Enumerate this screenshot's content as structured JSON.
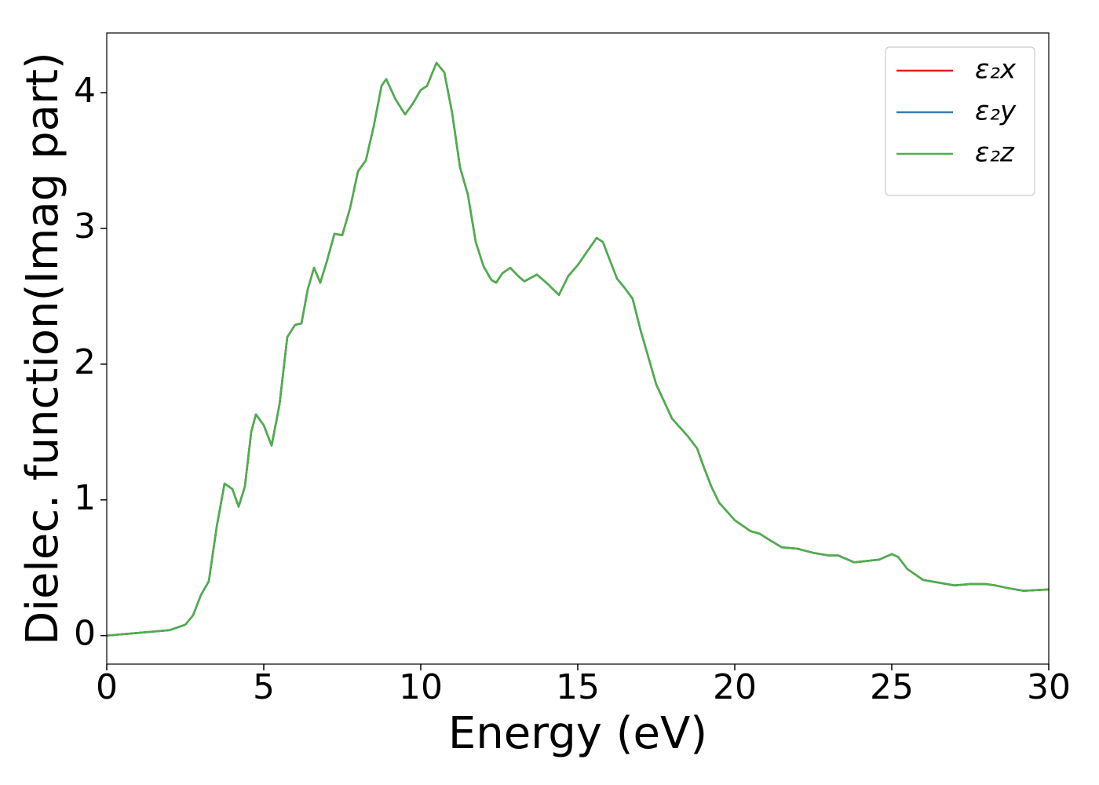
{
  "chart_data": {
    "type": "line",
    "xlabel": "Energy (eV)",
    "ylabel": "Dielec. function(Imag part)",
    "x": [
      0,
      1,
      2,
      2.5,
      2.75,
      3.0,
      3.25,
      3.5,
      3.75,
      4.0,
      4.2,
      4.4,
      4.6,
      4.75,
      5.0,
      5.25,
      5.5,
      5.75,
      6.0,
      6.2,
      6.4,
      6.6,
      6.8,
      7.0,
      7.25,
      7.5,
      7.75,
      8.0,
      8.25,
      8.5,
      8.75,
      8.9,
      9.2,
      9.5,
      9.75,
      10.0,
      10.2,
      10.5,
      10.75,
      11.0,
      11.25,
      11.5,
      11.75,
      12.0,
      12.25,
      12.4,
      12.6,
      12.85,
      13.1,
      13.3,
      13.7,
      14.0,
      14.4,
      14.7,
      15.0,
      15.3,
      15.6,
      15.8,
      16.0,
      16.25,
      16.5,
      16.75,
      17.0,
      17.25,
      17.5,
      18.0,
      18.5,
      18.8,
      19.0,
      19.25,
      19.5,
      20.0,
      20.5,
      20.8,
      21.0,
      21.5,
      22.0,
      22.5,
      23.0,
      23.3,
      23.8,
      24.2,
      24.6,
      25.0,
      25.2,
      25.5,
      26.0,
      26.5,
      27.0,
      27.5,
      28.0,
      28.3,
      28.7,
      29.2,
      30
    ],
    "series": [
      {
        "name": "ε₂x",
        "color": "#e41a1c",
        "values": [
          0,
          0.02,
          0.04,
          0.08,
          0.15,
          0.3,
          0.4,
          0.8,
          1.12,
          1.08,
          0.95,
          1.1,
          1.5,
          1.63,
          1.55,
          1.4,
          1.7,
          2.2,
          2.29,
          2.3,
          2.55,
          2.71,
          2.6,
          2.75,
          2.96,
          2.95,
          3.15,
          3.42,
          3.5,
          3.75,
          4.05,
          4.1,
          3.95,
          3.84,
          3.92,
          4.02,
          4.05,
          4.22,
          4.15,
          3.85,
          3.45,
          3.25,
          2.9,
          2.72,
          2.62,
          2.6,
          2.67,
          2.71,
          2.65,
          2.61,
          2.66,
          2.6,
          2.51,
          2.65,
          2.73,
          2.83,
          2.93,
          2.9,
          2.78,
          2.63,
          2.56,
          2.48,
          2.25,
          2.05,
          1.85,
          1.6,
          1.47,
          1.38,
          1.25,
          1.1,
          0.98,
          0.85,
          0.77,
          0.75,
          0.72,
          0.65,
          0.64,
          0.61,
          0.59,
          0.59,
          0.54,
          0.55,
          0.56,
          0.6,
          0.58,
          0.49,
          0.41,
          0.39,
          0.37,
          0.38,
          0.38,
          0.37,
          0.35,
          0.33,
          0.34
        ]
      },
      {
        "name": "ε₂y",
        "color": "#377eb8",
        "values": [
          0,
          0.02,
          0.04,
          0.08,
          0.15,
          0.3,
          0.4,
          0.8,
          1.12,
          1.08,
          0.95,
          1.1,
          1.5,
          1.63,
          1.55,
          1.4,
          1.7,
          2.2,
          2.29,
          2.3,
          2.55,
          2.71,
          2.6,
          2.75,
          2.96,
          2.95,
          3.15,
          3.42,
          3.5,
          3.75,
          4.05,
          4.1,
          3.95,
          3.84,
          3.92,
          4.02,
          4.05,
          4.22,
          4.15,
          3.85,
          3.45,
          3.25,
          2.9,
          2.72,
          2.62,
          2.6,
          2.67,
          2.71,
          2.65,
          2.61,
          2.66,
          2.6,
          2.51,
          2.65,
          2.73,
          2.83,
          2.93,
          2.9,
          2.78,
          2.63,
          2.56,
          2.48,
          2.25,
          2.05,
          1.85,
          1.6,
          1.47,
          1.38,
          1.25,
          1.1,
          0.98,
          0.85,
          0.77,
          0.75,
          0.72,
          0.65,
          0.64,
          0.61,
          0.59,
          0.59,
          0.54,
          0.55,
          0.56,
          0.6,
          0.58,
          0.49,
          0.41,
          0.39,
          0.37,
          0.38,
          0.38,
          0.37,
          0.35,
          0.33,
          0.34
        ]
      },
      {
        "name": "ε₂z",
        "color": "#4daf4a",
        "values": [
          0,
          0.02,
          0.04,
          0.08,
          0.15,
          0.3,
          0.4,
          0.8,
          1.12,
          1.08,
          0.95,
          1.1,
          1.5,
          1.63,
          1.55,
          1.4,
          1.7,
          2.2,
          2.29,
          2.3,
          2.55,
          2.71,
          2.6,
          2.75,
          2.96,
          2.95,
          3.15,
          3.42,
          3.5,
          3.75,
          4.05,
          4.1,
          3.95,
          3.84,
          3.92,
          4.02,
          4.05,
          4.22,
          4.15,
          3.85,
          3.45,
          3.25,
          2.9,
          2.72,
          2.62,
          2.6,
          2.67,
          2.71,
          2.65,
          2.61,
          2.66,
          2.6,
          2.51,
          2.65,
          2.73,
          2.83,
          2.93,
          2.9,
          2.78,
          2.63,
          2.56,
          2.48,
          2.25,
          2.05,
          1.85,
          1.6,
          1.47,
          1.38,
          1.25,
          1.1,
          0.98,
          0.85,
          0.77,
          0.75,
          0.72,
          0.65,
          0.64,
          0.61,
          0.59,
          0.59,
          0.54,
          0.55,
          0.56,
          0.6,
          0.58,
          0.49,
          0.41,
          0.39,
          0.37,
          0.38,
          0.38,
          0.37,
          0.35,
          0.33,
          0.34
        ]
      }
    ],
    "xlim": [
      0,
      30
    ],
    "xticks": [
      0,
      5,
      10,
      15,
      20,
      25,
      30
    ],
    "ylim": [
      -0.21,
      4.44
    ],
    "yticks": [
      0,
      1,
      2,
      3,
      4
    ],
    "legend": "upper right"
  }
}
